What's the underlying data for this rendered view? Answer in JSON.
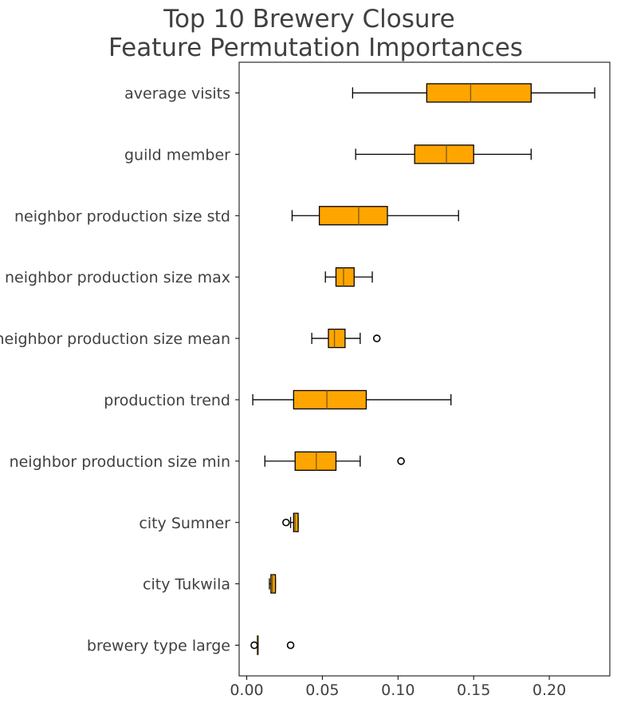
{
  "chart_data": {
    "type": "boxplot",
    "orientation": "horizontal",
    "title_lines": [
      "Top 10 Brewery Closure",
      "Feature Permutation Importances"
    ],
    "xlabel": "",
    "ylabel": "",
    "xlim": [
      -0.005,
      0.24
    ],
    "x_ticks": [
      0.0,
      0.05,
      0.1,
      0.15,
      0.2
    ],
    "x_tick_labels": [
      "0.00",
      "0.05",
      "0.10",
      "0.15",
      "0.20"
    ],
    "grid": false,
    "box_color": "#ffa500",
    "median_color": "#7a5a1a",
    "series": [
      {
        "name": "average visits",
        "whisker_low": 0.07,
        "q1": 0.119,
        "median": 0.148,
        "q3": 0.188,
        "whisker_high": 0.23,
        "outliers": []
      },
      {
        "name": "guild member",
        "whisker_low": 0.072,
        "q1": 0.111,
        "median": 0.132,
        "q3": 0.15,
        "whisker_high": 0.188,
        "outliers": []
      },
      {
        "name": "neighbor production size std",
        "whisker_low": 0.03,
        "q1": 0.048,
        "median": 0.074,
        "q3": 0.093,
        "whisker_high": 0.14,
        "outliers": []
      },
      {
        "name": "neighbor production size max",
        "whisker_low": 0.052,
        "q1": 0.059,
        "median": 0.064,
        "q3": 0.071,
        "whisker_high": 0.083,
        "outliers": []
      },
      {
        "name": "neighbor production size mean",
        "whisker_low": 0.043,
        "q1": 0.054,
        "median": 0.058,
        "q3": 0.065,
        "whisker_high": 0.075,
        "outliers": [
          0.086
        ]
      },
      {
        "name": "production trend",
        "whisker_low": 0.004,
        "q1": 0.031,
        "median": 0.053,
        "q3": 0.079,
        "whisker_high": 0.135,
        "outliers": []
      },
      {
        "name": "neighbor production size min",
        "whisker_low": 0.012,
        "q1": 0.032,
        "median": 0.046,
        "q3": 0.059,
        "whisker_high": 0.075,
        "outliers": [
          0.102
        ]
      },
      {
        "name": "city Sumner",
        "whisker_low": 0.029,
        "q1": 0.031,
        "median": 0.032,
        "q3": 0.034,
        "whisker_high": 0.034,
        "outliers": [
          0.026
        ]
      },
      {
        "name": "city Tukwila",
        "whisker_low": 0.015,
        "q1": 0.016,
        "median": 0.017,
        "q3": 0.019,
        "whisker_high": 0.019,
        "outliers": []
      },
      {
        "name": "brewery type large",
        "whisker_low": 0.007,
        "q1": 0.007,
        "median": 0.007,
        "q3": 0.007,
        "whisker_high": 0.007,
        "outliers": [
          0.005,
          0.029
        ]
      }
    ]
  }
}
